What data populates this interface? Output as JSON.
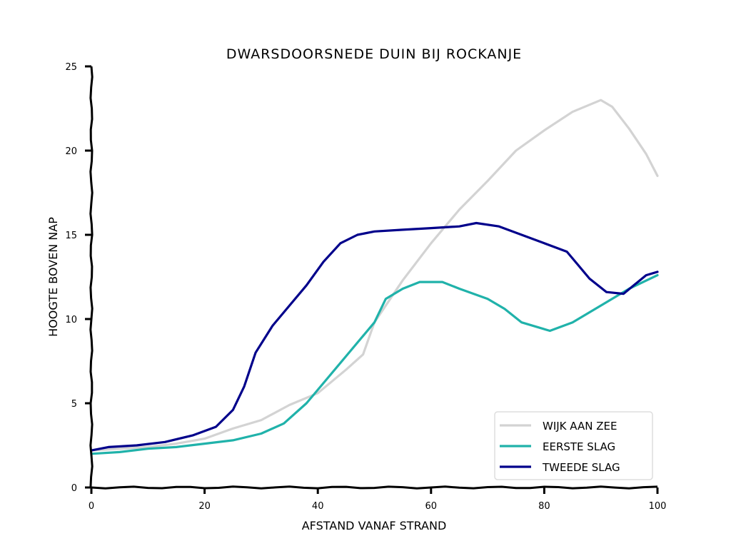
{
  "chart_data": {
    "type": "line",
    "title": "Dwarsdoorsnede duin bij Rockanje",
    "xlabel": "Afstand vanaf strand",
    "ylabel": "Hoogte boven NAP",
    "xlim": [
      0,
      100
    ],
    "ylim": [
      0,
      25
    ],
    "xticks": [
      0,
      20,
      40,
      60,
      80,
      100
    ],
    "yticks": [
      0,
      5,
      10,
      15,
      20,
      25
    ],
    "grid": false,
    "legend_position": "bottom-right",
    "series": [
      {
        "name": "Wijk aan Zee",
        "color": "#d3d3d3",
        "x": [
          0,
          5,
          10,
          15,
          20,
          25,
          30,
          35,
          40,
          45,
          48,
          50,
          55,
          60,
          65,
          70,
          75,
          80,
          85,
          90,
          92,
          95,
          98,
          100
        ],
        "y": [
          2.2,
          2.3,
          2.4,
          2.6,
          2.9,
          3.5,
          4.0,
          4.9,
          5.6,
          7.0,
          7.9,
          9.8,
          12.3,
          14.5,
          16.5,
          18.2,
          20.0,
          21.2,
          22.3,
          23.0,
          22.6,
          21.3,
          19.8,
          18.5
        ]
      },
      {
        "name": "Eerste slag",
        "color": "#20b2aa",
        "x": [
          0,
          5,
          10,
          15,
          20,
          25,
          30,
          34,
          38,
          40,
          45,
          50,
          52,
          55,
          58,
          62,
          65,
          70,
          73,
          76,
          81,
          85,
          90,
          95,
          100
        ],
        "y": [
          2.0,
          2.1,
          2.3,
          2.4,
          2.6,
          2.8,
          3.2,
          3.8,
          5.0,
          5.8,
          7.8,
          9.8,
          11.2,
          11.8,
          12.2,
          12.2,
          11.8,
          11.2,
          10.6,
          9.8,
          9.3,
          9.8,
          10.8,
          11.8,
          12.6
        ]
      },
      {
        "name": "Tweede slag",
        "color": "#00008b",
        "x": [
          0,
          3,
          8,
          13,
          18,
          22,
          25,
          27,
          29,
          32,
          35,
          38,
          41,
          44,
          47,
          50,
          55,
          60,
          65,
          68,
          72,
          76,
          80,
          84,
          86,
          88,
          91,
          94,
          98,
          100
        ],
        "y": [
          2.2,
          2.4,
          2.5,
          2.7,
          3.1,
          3.6,
          4.6,
          6.0,
          8.0,
          9.6,
          10.8,
          12.0,
          13.4,
          14.5,
          15.0,
          15.2,
          15.3,
          15.4,
          15.5,
          15.7,
          15.5,
          15.0,
          14.5,
          14.0,
          13.2,
          12.4,
          11.6,
          11.5,
          12.6,
          12.8
        ]
      }
    ]
  }
}
